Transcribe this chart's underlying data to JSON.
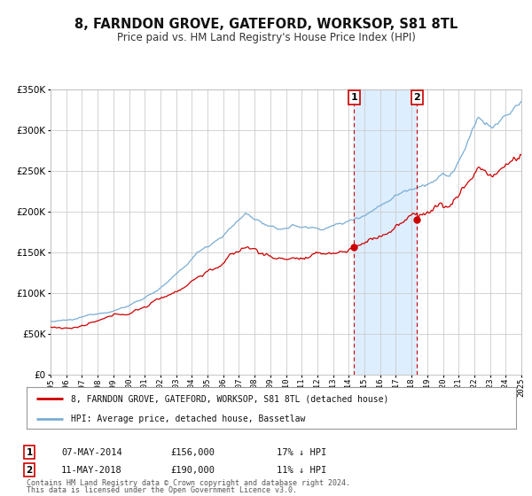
{
  "title": "8, FARNDON GROVE, GATEFORD, WORKSOP, S81 8TL",
  "subtitle": "Price paid vs. HM Land Registry's House Price Index (HPI)",
  "legend_line1": "8, FARNDON GROVE, GATEFORD, WORKSOP, S81 8TL (detached house)",
  "legend_line2": "HPI: Average price, detached house, Bassetlaw",
  "sale1_date": "07-MAY-2014",
  "sale1_price": "£156,000",
  "sale1_note": "17% ↓ HPI",
  "sale1_year": 2014.35,
  "sale1_value": 156000,
  "sale2_date": "11-MAY-2018",
  "sale2_price": "£190,000",
  "sale2_note": "11% ↓ HPI",
  "sale2_year": 2018.36,
  "sale2_value": 190000,
  "footer_line1": "Contains HM Land Registry data © Crown copyright and database right 2024.",
  "footer_line2": "This data is licensed under the Open Government Licence v3.0.",
  "ylim": [
    0,
    350000
  ],
  "xlim_start": 1995,
  "xlim_end": 2025,
  "red_color": "#cc0000",
  "blue_color": "#7aadd4",
  "shading_color": "#ddeeff",
  "grid_color": "#cccccc",
  "background_color": "#ffffff"
}
